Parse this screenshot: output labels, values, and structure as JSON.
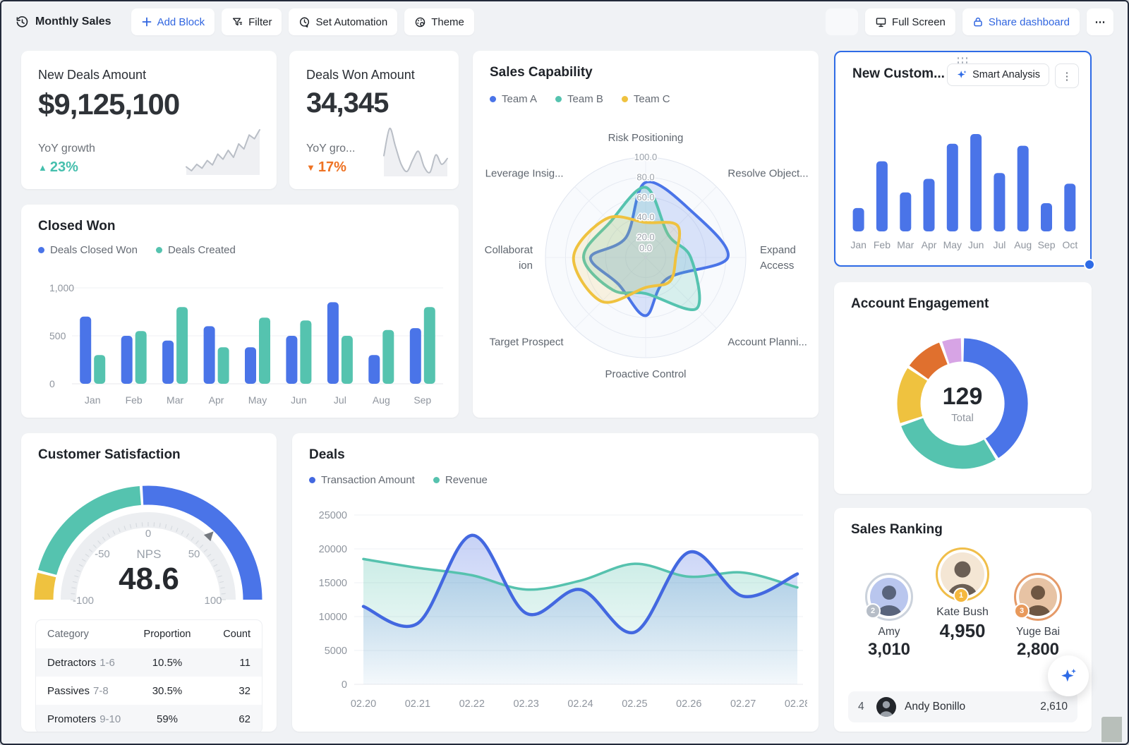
{
  "toolbar": {
    "title": "Monthly Sales",
    "add_block": "Add Block",
    "filter": "Filter",
    "set_automation": "Set Automation",
    "theme": "Theme",
    "full_screen": "Full Screen",
    "share": "Share dashboard",
    "more": "⋯"
  },
  "colors": {
    "blue": "#4A74E8",
    "teal": "#55C3AF",
    "yellow": "#EFC23F",
    "orange_segment": "#E0702E",
    "purple_segment": "#D7A4E5",
    "up": "#45BFAD",
    "down": "#EE7223",
    "accent": "#2E6BE6"
  },
  "cards": {
    "new_deals": {
      "title": "New Deals Amount",
      "value": "$9,125,100",
      "sub": "YoY growth",
      "change": "23%"
    },
    "deals_won": {
      "title": "Deals Won Amount",
      "value": "34,345",
      "sub": "YoY gro...",
      "change": "17%"
    },
    "sales_capability": {
      "title": "Sales Capability"
    },
    "new_customers": {
      "title": "New Custom...",
      "smart": "Smart Analysis",
      "more_v": "⋮"
    },
    "closed_won": {
      "title": "Closed Won"
    },
    "account_engagement": {
      "title": "Account Engagement",
      "total": "129",
      "total_label": "Total"
    },
    "customer_satisfaction": {
      "title": "Customer Satisfaction",
      "gauge_label": "NPS",
      "gauge_value": "48.6",
      "table": {
        "headers": [
          "Category",
          "Proportion",
          "Count"
        ],
        "rows": [
          {
            "name": "Detractors",
            "range": "1-6",
            "proportion": "10.5%",
            "count": "11"
          },
          {
            "name": "Passives",
            "range": "7-8",
            "proportion": "30.5%",
            "count": "32"
          },
          {
            "name": "Promoters",
            "range": "9-10",
            "proportion": "59%",
            "count": "62"
          }
        ]
      }
    },
    "deals": {
      "title": "Deals"
    },
    "sales_ranking": {
      "title": "Sales Ranking",
      "podium": [
        {
          "rank": "2",
          "name": "Amy",
          "value": "3,010"
        },
        {
          "rank": "1",
          "name": "Kate Bush",
          "value": "4,950"
        },
        {
          "rank": "3",
          "name": "Yuge Bai",
          "value": "2,800"
        }
      ],
      "row": {
        "rank": "4",
        "name": "Andy Bonillo",
        "value": "2,610"
      }
    }
  },
  "chart_data": [
    {
      "id": "new_deals_spark",
      "type": "line",
      "smooth": false,
      "values": [
        2.6,
        2.0,
        3.0,
        2.4,
        3.6,
        2.9,
        4.6,
        3.8,
        5.2,
        4.1,
        6.2,
        5.4,
        7.6,
        7.0,
        8.4
      ]
    },
    {
      "id": "deals_won_spark",
      "type": "line",
      "smooth": true,
      "values": [
        4.2,
        8.0,
        5.5,
        3.0,
        2.0,
        3.6,
        4.8,
        2.6,
        1.9,
        4.3,
        3.0,
        3.8
      ]
    },
    {
      "id": "sales_capability",
      "type": "radar",
      "rmax": 100,
      "axes": [
        "Risk Positioning",
        "Resolve Object...",
        "Expand Access",
        "Account Planni...",
        "Proactive Control",
        "Target Prospect",
        "Collaboration",
        "Leverage Insig..."
      ],
      "axis_lines": [
        [
          "Risk Positioning"
        ],
        [
          "Resolve Object..."
        ],
        [
          "Expand",
          "Access"
        ],
        [
          "Account Planni..."
        ],
        [
          "Proactive Control"
        ],
        [
          "Target Prospect"
        ],
        [
          "Collaborat",
          "ion"
        ],
        [
          "Leverage Insig..."
        ]
      ],
      "tick_labels": [
        "0.0",
        "20.0",
        "40.0",
        "60.0",
        "80.0",
        "100.0"
      ],
      "series": [
        {
          "name": "Team A",
          "color": "#4A74E8",
          "values": [
            75,
            65,
            82,
            30,
            58,
            38,
            55,
            28
          ]
        },
        {
          "name": "Team B",
          "color": "#55C3AF",
          "values": [
            70,
            32,
            45,
            72,
            36,
            46,
            62,
            50
          ]
        },
        {
          "name": "Team C",
          "color": "#EFC23F",
          "values": [
            35,
            45,
            30,
            34,
            30,
            62,
            72,
            55
          ]
        }
      ]
    },
    {
      "id": "new_customers",
      "type": "bar",
      "color": "#4A74E8",
      "categories": [
        "Jan",
        "Feb",
        "Mar",
        "Apr",
        "May",
        "Jun",
        "Jul",
        "Aug",
        "Sep",
        "Oct"
      ],
      "values": [
        24,
        72,
        40,
        54,
        90,
        100,
        60,
        88,
        29,
        49
      ]
    },
    {
      "id": "closed_won",
      "type": "bar",
      "ylim": [
        0,
        1000
      ],
      "categories": [
        "Jan",
        "Feb",
        "Mar",
        "Apr",
        "May",
        "Jun",
        "Jul",
        "Aug",
        "Sep"
      ],
      "yticks": [
        0,
        500,
        1000
      ],
      "ytick_labels": [
        "0",
        "500",
        "1,000"
      ],
      "series": [
        {
          "name": "Deals Closed Won",
          "color": "#4A74E8",
          "values": [
            700,
            500,
            450,
            600,
            380,
            500,
            850,
            300,
            580
          ]
        },
        {
          "name": "Deals Created",
          "color": "#55C3AF",
          "values": [
            300,
            550,
            800,
            380,
            690,
            660,
            500,
            560,
            800
          ]
        }
      ]
    },
    {
      "id": "account_engagement",
      "type": "pie",
      "total": 129,
      "segments": [
        {
          "color": "#4A74E8",
          "value": 53
        },
        {
          "color": "#55C3AF",
          "value": 37
        },
        {
          "color": "#EFC23F",
          "value": 19
        },
        {
          "color": "#E0702E",
          "value": 13
        },
        {
          "color": "#D7A4E5",
          "value": 7
        }
      ]
    },
    {
      "id": "nps_gauge",
      "type": "gauge",
      "min": -100,
      "max": 100,
      "value": 48.6,
      "tick_values": [
        -100,
        -50,
        0,
        50,
        100
      ],
      "tick_labels": [
        "-100",
        "-50",
        "0",
        "50",
        "100"
      ],
      "bands": [
        {
          "from": -100,
          "to": -84,
          "color": "#EFC23F"
        },
        {
          "from": -84,
          "to": -4,
          "color": "#55C3AF"
        },
        {
          "from": -4,
          "to": 100,
          "color": "#4A74E8"
        }
      ]
    },
    {
      "id": "deals",
      "type": "area",
      "ylim": [
        0,
        25000
      ],
      "x": [
        "02.20",
        "02.21",
        "02.22",
        "02.23",
        "02.24",
        "02.25",
        "02.26",
        "02.27",
        "02.28"
      ],
      "yticks": [
        0,
        5000,
        10000,
        15000,
        20000,
        25000
      ],
      "ytick_labels": [
        "0",
        "5000",
        "10000",
        "15000",
        "20000",
        "25000"
      ],
      "series": [
        {
          "name": "Transaction Amount",
          "color": "#4368E0",
          "values": [
            11500,
            9000,
            22000,
            10500,
            14000,
            7700,
            19500,
            13000,
            16300
          ]
        },
        {
          "name": "Revenue",
          "color": "#56C2AE",
          "values": [
            18500,
            17200,
            16100,
            14000,
            15300,
            17800,
            15900,
            16500,
            14300
          ]
        }
      ]
    }
  ]
}
